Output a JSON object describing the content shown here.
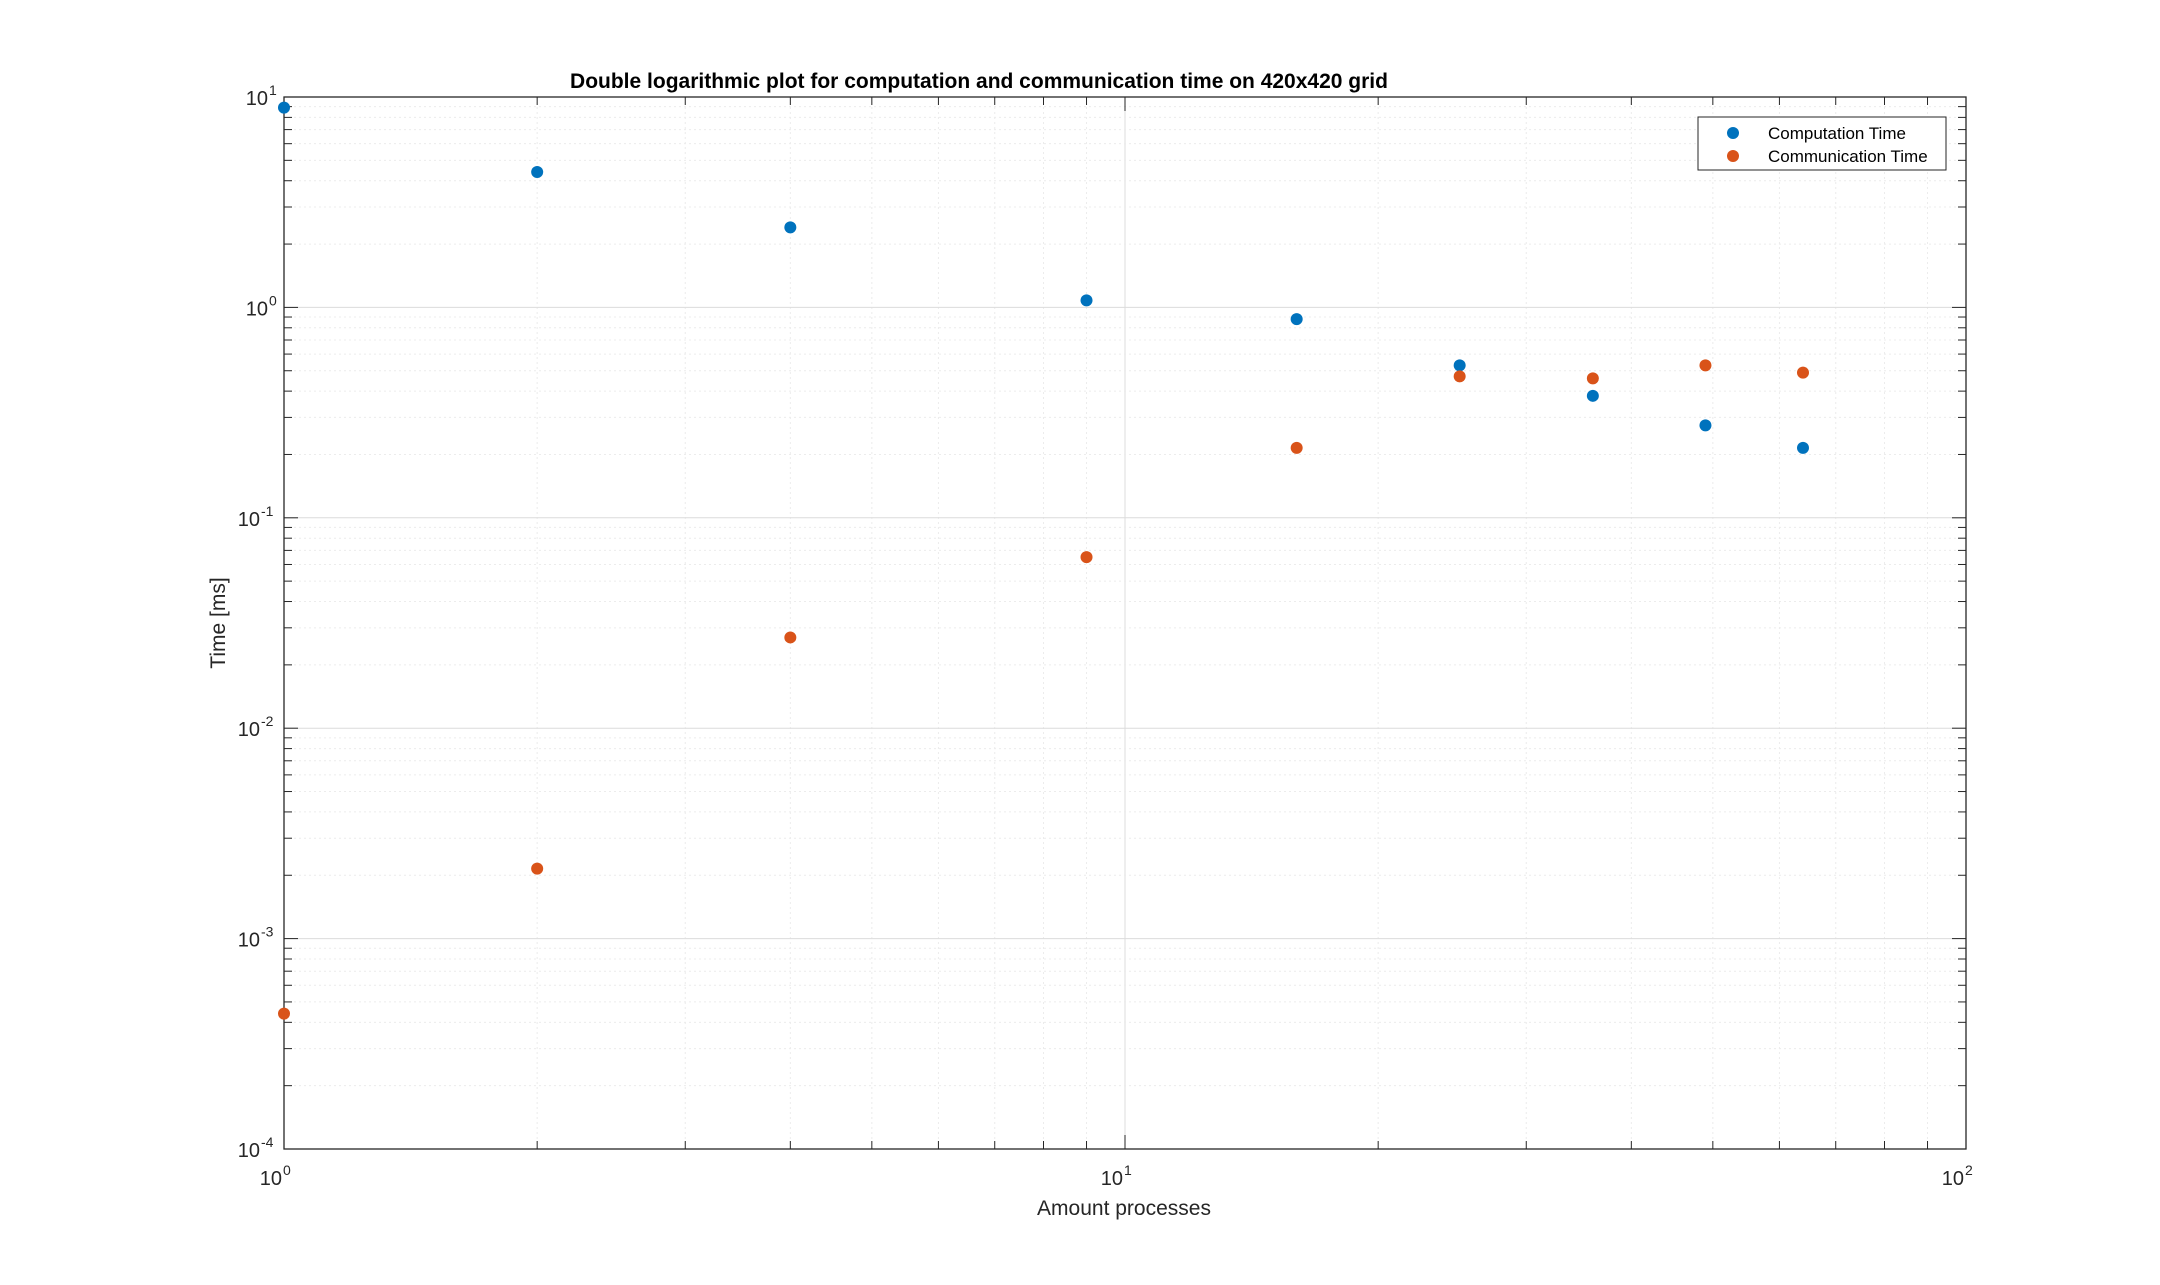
{
  "chart_data": {
    "type": "scatter",
    "title": "Double logarithmic plot for computation and communication time on 420x420 grid",
    "xlabel": "Amount processes",
    "ylabel": "Time [ms]",
    "xscale": "log",
    "yscale": "log",
    "xlim": [
      1,
      100
    ],
    "ylim": [
      0.0001,
      10
    ],
    "grid": true,
    "minor_grid": true,
    "legend_position": "top-right",
    "x_tick_labels": [
      {
        "base": "10",
        "exp": "0"
      },
      {
        "base": "10",
        "exp": "1"
      },
      {
        "base": "10",
        "exp": "2"
      }
    ],
    "y_tick_labels": [
      {
        "base": "10",
        "exp": "-4"
      },
      {
        "base": "10",
        "exp": "-3"
      },
      {
        "base": "10",
        "exp": "-2"
      },
      {
        "base": "10",
        "exp": "-1"
      },
      {
        "base": "10",
        "exp": "0"
      },
      {
        "base": "10",
        "exp": "1"
      }
    ],
    "series": [
      {
        "name": "Computation Time",
        "color": "#0072BD",
        "x": [
          1,
          2,
          4,
          9,
          16,
          25,
          36,
          49,
          64
        ],
        "y": [
          8.9,
          4.4,
          2.4,
          1.08,
          0.88,
          0.53,
          0.38,
          0.275,
          0.215
        ]
      },
      {
        "name": "Communication Time",
        "color": "#D95319",
        "x": [
          1,
          2,
          4,
          9,
          16,
          25,
          36,
          49,
          64
        ],
        "y": [
          0.00044,
          0.00215,
          0.027,
          0.065,
          0.215,
          0.47,
          0.46,
          0.53,
          0.49
        ]
      }
    ]
  }
}
